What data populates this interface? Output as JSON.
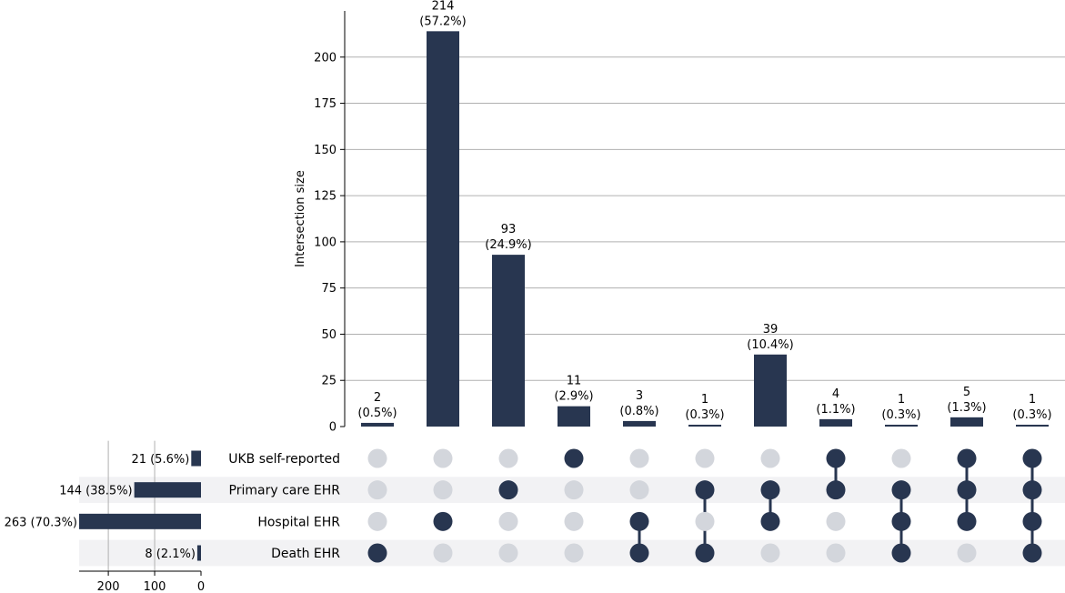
{
  "chart_data": {
    "type": "upset",
    "ylabel": "Intersection size",
    "ylim": [
      0,
      225
    ],
    "yticks": [
      0,
      25,
      50,
      75,
      100,
      125,
      150,
      175,
      200
    ],
    "grid": true,
    "sets": [
      {
        "name": "UKB self-reported",
        "size": 21,
        "label": "21 (5.6%)"
      },
      {
        "name": "Primary care EHR",
        "size": 144,
        "label": "144 (38.5%)"
      },
      {
        "name": "Hospital EHR",
        "size": 263,
        "label": "263 (70.3%)"
      },
      {
        "name": "Death EHR",
        "size": 8,
        "label": "8 (2.1%)"
      }
    ],
    "set_size_xlim": [
      0,
      263
    ],
    "set_size_ticks": [
      200,
      100,
      0
    ],
    "intersections": [
      {
        "value": 2,
        "count_label": "2",
        "pct_label": "(0.5%)",
        "members": [
          0,
          0,
          0,
          1
        ]
      },
      {
        "value": 214,
        "count_label": "214",
        "pct_label": "(57.2%)",
        "members": [
          0,
          0,
          1,
          0
        ]
      },
      {
        "value": 93,
        "count_label": "93",
        "pct_label": "(24.9%)",
        "members": [
          0,
          1,
          0,
          0
        ]
      },
      {
        "value": 11,
        "count_label": "11",
        "pct_label": "(2.9%)",
        "members": [
          1,
          0,
          0,
          0
        ]
      },
      {
        "value": 3,
        "count_label": "3",
        "pct_label": "(0.8%)",
        "members": [
          0,
          0,
          1,
          1
        ]
      },
      {
        "value": 1,
        "count_label": "1",
        "pct_label": "(0.3%)",
        "members": [
          0,
          1,
          0,
          1
        ]
      },
      {
        "value": 39,
        "count_label": "39",
        "pct_label": "(10.4%)",
        "members": [
          0,
          1,
          1,
          0
        ]
      },
      {
        "value": 4,
        "count_label": "4",
        "pct_label": "(1.1%)",
        "members": [
          1,
          1,
          0,
          0
        ]
      },
      {
        "value": 1,
        "count_label": "1",
        "pct_label": "(0.3%)",
        "members": [
          0,
          1,
          1,
          1
        ]
      },
      {
        "value": 5,
        "count_label": "5",
        "pct_label": "(1.3%)",
        "members": [
          1,
          1,
          1,
          0
        ]
      },
      {
        "value": 1,
        "count_label": "1",
        "pct_label": "(0.3%)",
        "members": [
          1,
          1,
          1,
          1
        ]
      }
    ],
    "colors": {
      "bar": "#283650",
      "dot_active": "#283650",
      "dot_inactive": "#d3d6dc",
      "row_shade": "#f2f2f4",
      "grid": "#b0b0b0"
    }
  }
}
